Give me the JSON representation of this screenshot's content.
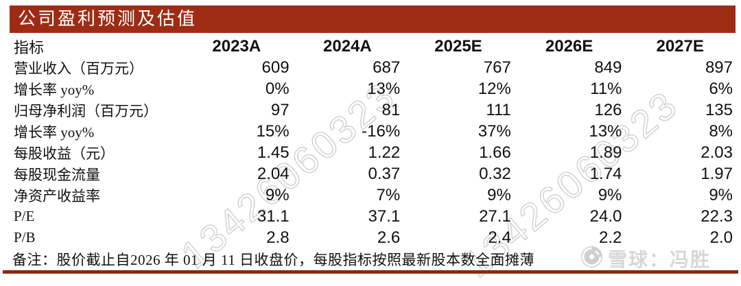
{
  "title": "公司盈利预测及估值",
  "table": {
    "header": [
      "指标",
      "2023A",
      "2024A",
      "2025E",
      "2026E",
      "2027E"
    ],
    "rows": [
      {
        "label": "营业收入（百万元）",
        "values": [
          "609",
          "687",
          "767",
          "849",
          "897"
        ]
      },
      {
        "label": "增长率 yoy%",
        "values": [
          "0%",
          "13%",
          "12%",
          "11%",
          "6%"
        ]
      },
      {
        "label": "归母净利润（百万元）",
        "values": [
          "97",
          "81",
          "111",
          "126",
          "135"
        ]
      },
      {
        "label": "增长率 yoy%",
        "values": [
          "15%",
          "-16%",
          "37%",
          "13%",
          "8%"
        ]
      },
      {
        "label": "每股收益（元）",
        "values": [
          "1.45",
          "1.22",
          "1.66",
          "1.89",
          "2.03"
        ]
      },
      {
        "label": "每股现金流量",
        "values": [
          "2.04",
          "0.37",
          "0.32",
          "1.74",
          "1.97"
        ]
      },
      {
        "label": "净资产收益率",
        "values": [
          "9%",
          "7%",
          "9%",
          "9%",
          "9%"
        ]
      },
      {
        "label": "P/E",
        "values": [
          "31.1",
          "37.1",
          "27.1",
          "24.0",
          "22.3"
        ]
      },
      {
        "label": "P/B",
        "values": [
          "2.8",
          "2.6",
          "2.4",
          "2.2",
          "2.0"
        ]
      }
    ]
  },
  "footnote": "备注：股价截止自2026 年 01 月 11 日收盘价，每股指标按照最新股本数全面摊薄",
  "watermark": {
    "phone": "13426060323",
    "source": "雪球：冯胜"
  },
  "colors": {
    "header_bar": "#9E2C15",
    "bottom_rule": "#8E2711",
    "watermark_gray": "#d7d7d5"
  }
}
